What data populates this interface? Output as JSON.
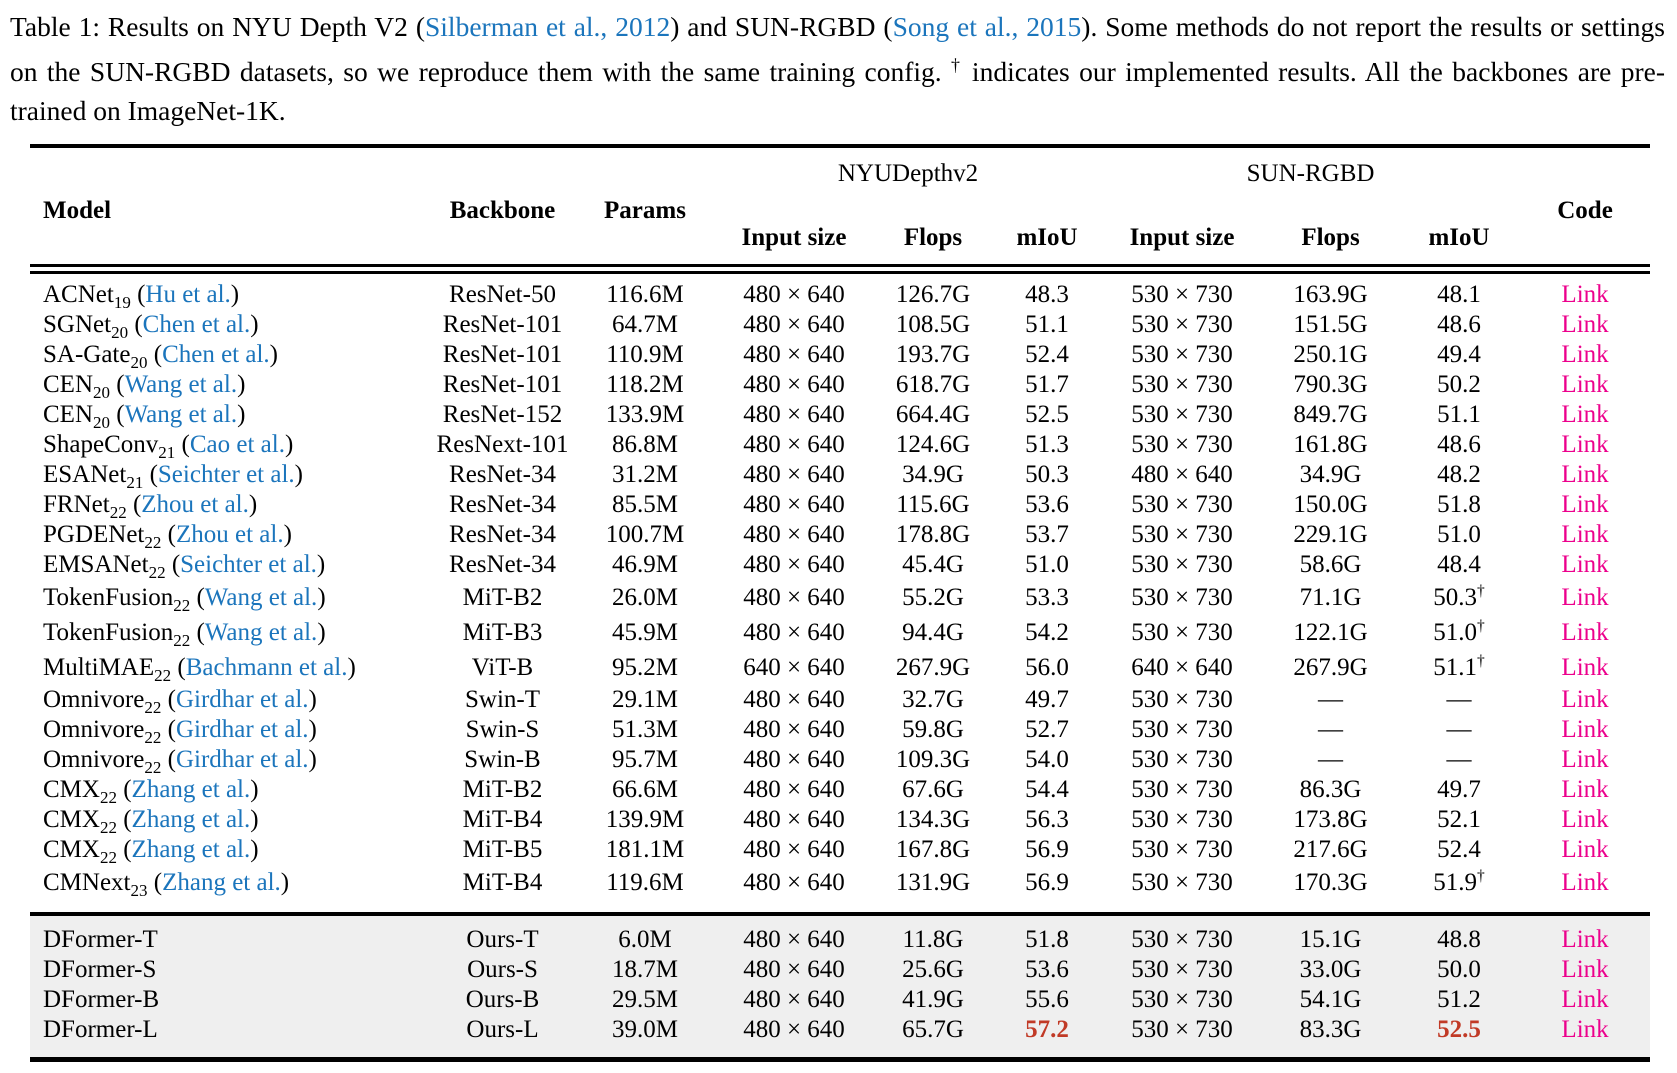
{
  "colors": {
    "citation_blue": "#1b75bc",
    "link_magenta": "#ec008c",
    "best_red": "#c13a26",
    "ours_row_bg": "#efefef"
  },
  "caption": {
    "segments": [
      {
        "t": "Table 1:  Results on NYU Depth V2 ("
      },
      {
        "t": "Silberman et al., 2012",
        "c": "cite"
      },
      {
        "t": ") and SUN-RGBD ("
      },
      {
        "t": "Song et al., 2015",
        "c": "cite"
      },
      {
        "t": ").  Some methods do not report the results or settings on the SUN-RGBD datasets, so we reproduce them with the same training config. "
      },
      {
        "t": "†",
        "c": "sup"
      },
      {
        "t": " indicates our implemented results. All the backbones are pre-trained on ImageNet-1K."
      }
    ]
  },
  "table": {
    "headers": {
      "model": "Model",
      "backbone": "Backbone",
      "params": "Params",
      "nyu_group": "NYUDepthv2",
      "sun_group": "SUN-RGBD",
      "input_size": "Input size",
      "flops": "Flops",
      "miou": "mIoU",
      "code": "Code"
    },
    "rows": [
      {
        "model": "ACNet",
        "sub": "19",
        "cite": "Hu et al.",
        "backbone": "ResNet-50",
        "params": "116.6M",
        "nyu_input": "480 × 640",
        "nyu_flops": "126.7G",
        "nyu_miou": "48.3",
        "sun_input": "530 × 730",
        "sun_flops": "163.9G",
        "sun_miou": "48.1",
        "code": "Link"
      },
      {
        "model": "SGNet",
        "sub": "20",
        "cite": "Chen et al.",
        "backbone": "ResNet-101",
        "params": "64.7M",
        "nyu_input": "480 × 640",
        "nyu_flops": "108.5G",
        "nyu_miou": "51.1",
        "sun_input": "530 × 730",
        "sun_flops": "151.5G",
        "sun_miou": "48.6",
        "code": "Link"
      },
      {
        "model": "SA-Gate",
        "sub": "20",
        "cite": "Chen et al.",
        "backbone": "ResNet-101",
        "params": "110.9M",
        "nyu_input": "480 × 640",
        "nyu_flops": "193.7G",
        "nyu_miou": "52.4",
        "sun_input": "530 × 730",
        "sun_flops": "250.1G",
        "sun_miou": "49.4",
        "code": "Link"
      },
      {
        "model": "CEN",
        "sub": "20",
        "cite": "Wang et al.",
        "backbone": "ResNet-101",
        "params": "118.2M",
        "nyu_input": "480 × 640",
        "nyu_flops": "618.7G",
        "nyu_miou": "51.7",
        "sun_input": "530 × 730",
        "sun_flops": "790.3G",
        "sun_miou": "50.2",
        "code": "Link"
      },
      {
        "model": "CEN",
        "sub": "20",
        "cite": "Wang et al.",
        "backbone": "ResNet-152",
        "params": "133.9M",
        "nyu_input": "480 × 640",
        "nyu_flops": "664.4G",
        "nyu_miou": "52.5",
        "sun_input": "530 × 730",
        "sun_flops": "849.7G",
        "sun_miou": "51.1",
        "code": "Link"
      },
      {
        "model": "ShapeConv",
        "sub": "21",
        "cite": "Cao et al.",
        "backbone": "ResNext-101",
        "params": "86.8M",
        "nyu_input": "480 × 640",
        "nyu_flops": "124.6G",
        "nyu_miou": "51.3",
        "sun_input": "530 × 730",
        "sun_flops": "161.8G",
        "sun_miou": "48.6",
        "code": "Link"
      },
      {
        "model": "ESANet",
        "sub": "21",
        "cite": "Seichter et al.",
        "backbone": "ResNet-34",
        "params": "31.2M",
        "nyu_input": "480 × 640",
        "nyu_flops": "34.9G",
        "nyu_miou": "50.3",
        "sun_input": "480 × 640",
        "sun_flops": "34.9G",
        "sun_miou": "48.2",
        "code": "Link"
      },
      {
        "model": "FRNet",
        "sub": "22",
        "cite": "Zhou et al.",
        "backbone": "ResNet-34",
        "params": "85.5M",
        "nyu_input": "480 × 640",
        "nyu_flops": "115.6G",
        "nyu_miou": "53.6",
        "sun_input": "530 × 730",
        "sun_flops": "150.0G",
        "sun_miou": "51.8",
        "code": "Link"
      },
      {
        "model": "PGDENet",
        "sub": "22",
        "cite": "Zhou et al.",
        "backbone": "ResNet-34",
        "params": "100.7M",
        "nyu_input": "480 × 640",
        "nyu_flops": "178.8G",
        "nyu_miou": "53.7",
        "sun_input": "530 × 730",
        "sun_flops": "229.1G",
        "sun_miou": "51.0",
        "code": "Link"
      },
      {
        "model": "EMSANet",
        "sub": "22",
        "cite": "Seichter et al.",
        "backbone": "ResNet-34",
        "params": "46.9M",
        "nyu_input": "480 × 640",
        "nyu_flops": "45.4G",
        "nyu_miou": "51.0",
        "sun_input": "530 × 730",
        "sun_flops": "58.6G",
        "sun_miou": "48.4",
        "code": "Link"
      },
      {
        "model": "TokenFusion",
        "sub": "22",
        "cite": "Wang et al.",
        "backbone": "MiT-B2",
        "params": "26.0M",
        "nyu_input": "480 × 640",
        "nyu_flops": "55.2G",
        "nyu_miou": "53.3",
        "sun_input": "530 × 730",
        "sun_flops": "71.1G",
        "sun_miou": "50.3",
        "sun_dagger": true,
        "code": "Link"
      },
      {
        "model": "TokenFusion",
        "sub": "22",
        "cite": "Wang et al.",
        "backbone": "MiT-B3",
        "params": "45.9M",
        "nyu_input": "480 × 640",
        "nyu_flops": "94.4G",
        "nyu_miou": "54.2",
        "sun_input": "530 × 730",
        "sun_flops": "122.1G",
        "sun_miou": "51.0",
        "sun_dagger": true,
        "code": "Link"
      },
      {
        "model": "MultiMAE",
        "sub": "22",
        "cite": "Bachmann et al.",
        "backbone": "ViT-B",
        "params": "95.2M",
        "nyu_input": "640 × 640",
        "nyu_flops": "267.9G",
        "nyu_miou": "56.0",
        "sun_input": "640 × 640",
        "sun_flops": "267.9G",
        "sun_miou": "51.1",
        "sun_dagger": true,
        "code": "Link"
      },
      {
        "model": "Omnivore",
        "sub": "22",
        "cite": "Girdhar et al.",
        "backbone": "Swin-T",
        "params": "29.1M",
        "nyu_input": "480 × 640",
        "nyu_flops": "32.7G",
        "nyu_miou": "49.7",
        "sun_input": "530 × 730",
        "sun_flops": "—",
        "sun_miou": "—",
        "code": "Link"
      },
      {
        "model": "Omnivore",
        "sub": "22",
        "cite": "Girdhar et al.",
        "backbone": "Swin-S",
        "params": "51.3M",
        "nyu_input": "480 × 640",
        "nyu_flops": "59.8G",
        "nyu_miou": "52.7",
        "sun_input": "530 × 730",
        "sun_flops": "—",
        "sun_miou": "—",
        "code": "Link"
      },
      {
        "model": "Omnivore",
        "sub": "22",
        "cite": "Girdhar et al.",
        "backbone": "Swin-B",
        "params": "95.7M",
        "nyu_input": "480 × 640",
        "nyu_flops": "109.3G",
        "nyu_miou": "54.0",
        "sun_input": "530 × 730",
        "sun_flops": "—",
        "sun_miou": "—",
        "code": "Link"
      },
      {
        "model": "CMX",
        "sub": "22",
        "cite": "Zhang et al.",
        "backbone": "MiT-B2",
        "params": "66.6M",
        "nyu_input": "480 × 640",
        "nyu_flops": "67.6G",
        "nyu_miou": "54.4",
        "sun_input": "530 × 730",
        "sun_flops": "86.3G",
        "sun_miou": "49.7",
        "code": "Link"
      },
      {
        "model": "CMX",
        "sub": "22",
        "cite": "Zhang et al.",
        "backbone": "MiT-B4",
        "params": "139.9M",
        "nyu_input": "480 × 640",
        "nyu_flops": "134.3G",
        "nyu_miou": "56.3",
        "sun_input": "530 × 730",
        "sun_flops": "173.8G",
        "sun_miou": "52.1",
        "code": "Link"
      },
      {
        "model": "CMX",
        "sub": "22",
        "cite": "Zhang et al.",
        "backbone": "MiT-B5",
        "params": "181.1M",
        "nyu_input": "480 × 640",
        "nyu_flops": "167.8G",
        "nyu_miou": "56.9",
        "sun_input": "530 × 730",
        "sun_flops": "217.6G",
        "sun_miou": "52.4",
        "code": "Link"
      },
      {
        "model": "CMNext",
        "sub": "23",
        "cite": "Zhang et al.",
        "backbone": "MiT-B4",
        "params": "119.6M",
        "nyu_input": "480 × 640",
        "nyu_flops": "131.9G",
        "nyu_miou": "56.9",
        "sun_input": "530 × 730",
        "sun_flops": "170.3G",
        "sun_miou": "51.9",
        "sun_dagger": true,
        "code": "Link"
      },
      {
        "model": "DFormer-T",
        "group": "ours",
        "backbone": "Ours-T",
        "params": "6.0M",
        "nyu_input": "480 × 640",
        "nyu_flops": "11.8G",
        "nyu_miou": "51.8",
        "sun_input": "530 × 730",
        "sun_flops": "15.1G",
        "sun_miou": "48.8",
        "code": "Link"
      },
      {
        "model": "DFormer-S",
        "group": "ours",
        "backbone": "Ours-S",
        "params": "18.7M",
        "nyu_input": "480 × 640",
        "nyu_flops": "25.6G",
        "nyu_miou": "53.6",
        "sun_input": "530 × 730",
        "sun_flops": "33.0G",
        "sun_miou": "50.0",
        "code": "Link"
      },
      {
        "model": "DFormer-B",
        "group": "ours",
        "backbone": "Ours-B",
        "params": "29.5M",
        "nyu_input": "480 × 640",
        "nyu_flops": "41.9G",
        "nyu_miou": "55.6",
        "sun_input": "530 × 730",
        "sun_flops": "54.1G",
        "sun_miou": "51.2",
        "code": "Link"
      },
      {
        "model": "DFormer-L",
        "group": "ours",
        "backbone": "Ours-L",
        "params": "39.0M",
        "nyu_input": "480 × 640",
        "nyu_flops": "65.7G",
        "nyu_miou": "57.2",
        "nyu_miou_best": true,
        "sun_input": "530 × 730",
        "sun_flops": "83.3G",
        "sun_miou": "52.5",
        "sun_miou_best": true,
        "code": "Link"
      }
    ]
  }
}
